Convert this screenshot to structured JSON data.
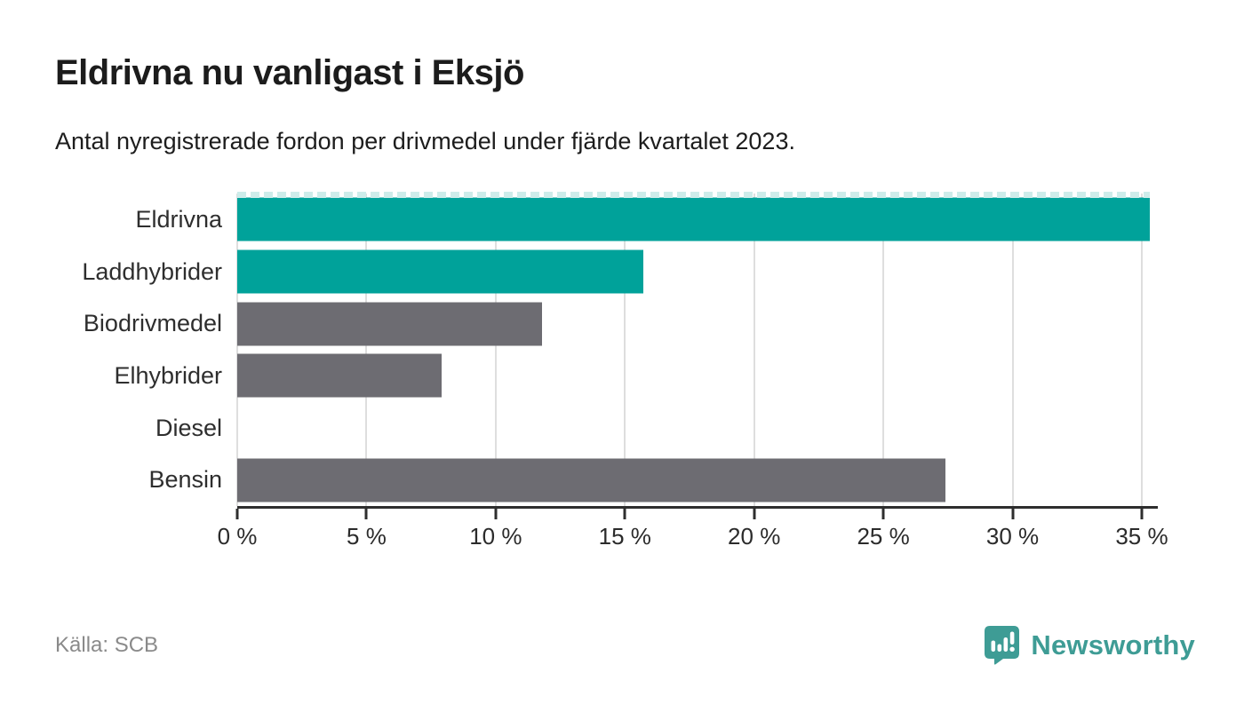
{
  "header": {
    "title": "Eldrivna nu vanligast i Eksjö",
    "subtitle": "Antal nyregistrerade fordon per drivmedel under fjärde kvartalet 2023."
  },
  "chart_data": {
    "type": "bar",
    "orientation": "horizontal",
    "title": "Eldrivna nu vanligast i Eksjö",
    "subtitle": "Antal nyregistrerade fordon per drivmedel under fjärde kvartalet 2023.",
    "categories": [
      "Eldrivna",
      "Laddhybrider",
      "Biodrivmedel",
      "Elhybrider",
      "Diesel",
      "Bensin"
    ],
    "values": [
      35.3,
      15.7,
      11.8,
      7.9,
      0,
      27.4
    ],
    "unit": "%",
    "xlabel": "",
    "ylabel": "",
    "xlim": [
      0,
      35.62
    ],
    "xticks": [
      0,
      5,
      10,
      15,
      20,
      25,
      30,
      35
    ],
    "xtick_labels": [
      "0 %",
      "5 %",
      "10 %",
      "15 %",
      "20 %",
      "25 %",
      "30 %",
      "35 %"
    ],
    "grid": true,
    "legend": false,
    "bar_colors": [
      "#00A29A",
      "#00A29A",
      "#6D6C72",
      "#6D6C72",
      "#6D6C72",
      "#6D6C72"
    ],
    "highlight_color": "#00A29A",
    "default_color": "#6D6C72",
    "gridline_color": "#dedede",
    "axis_color": "#2e2e2e",
    "cutoff_dash_bar_index": 0,
    "cutoff_dash_color": "#cdecea"
  },
  "footer": {
    "source": "Källa: SCB",
    "brand": "Newsworthy",
    "brand_color": "#3e9c95"
  }
}
